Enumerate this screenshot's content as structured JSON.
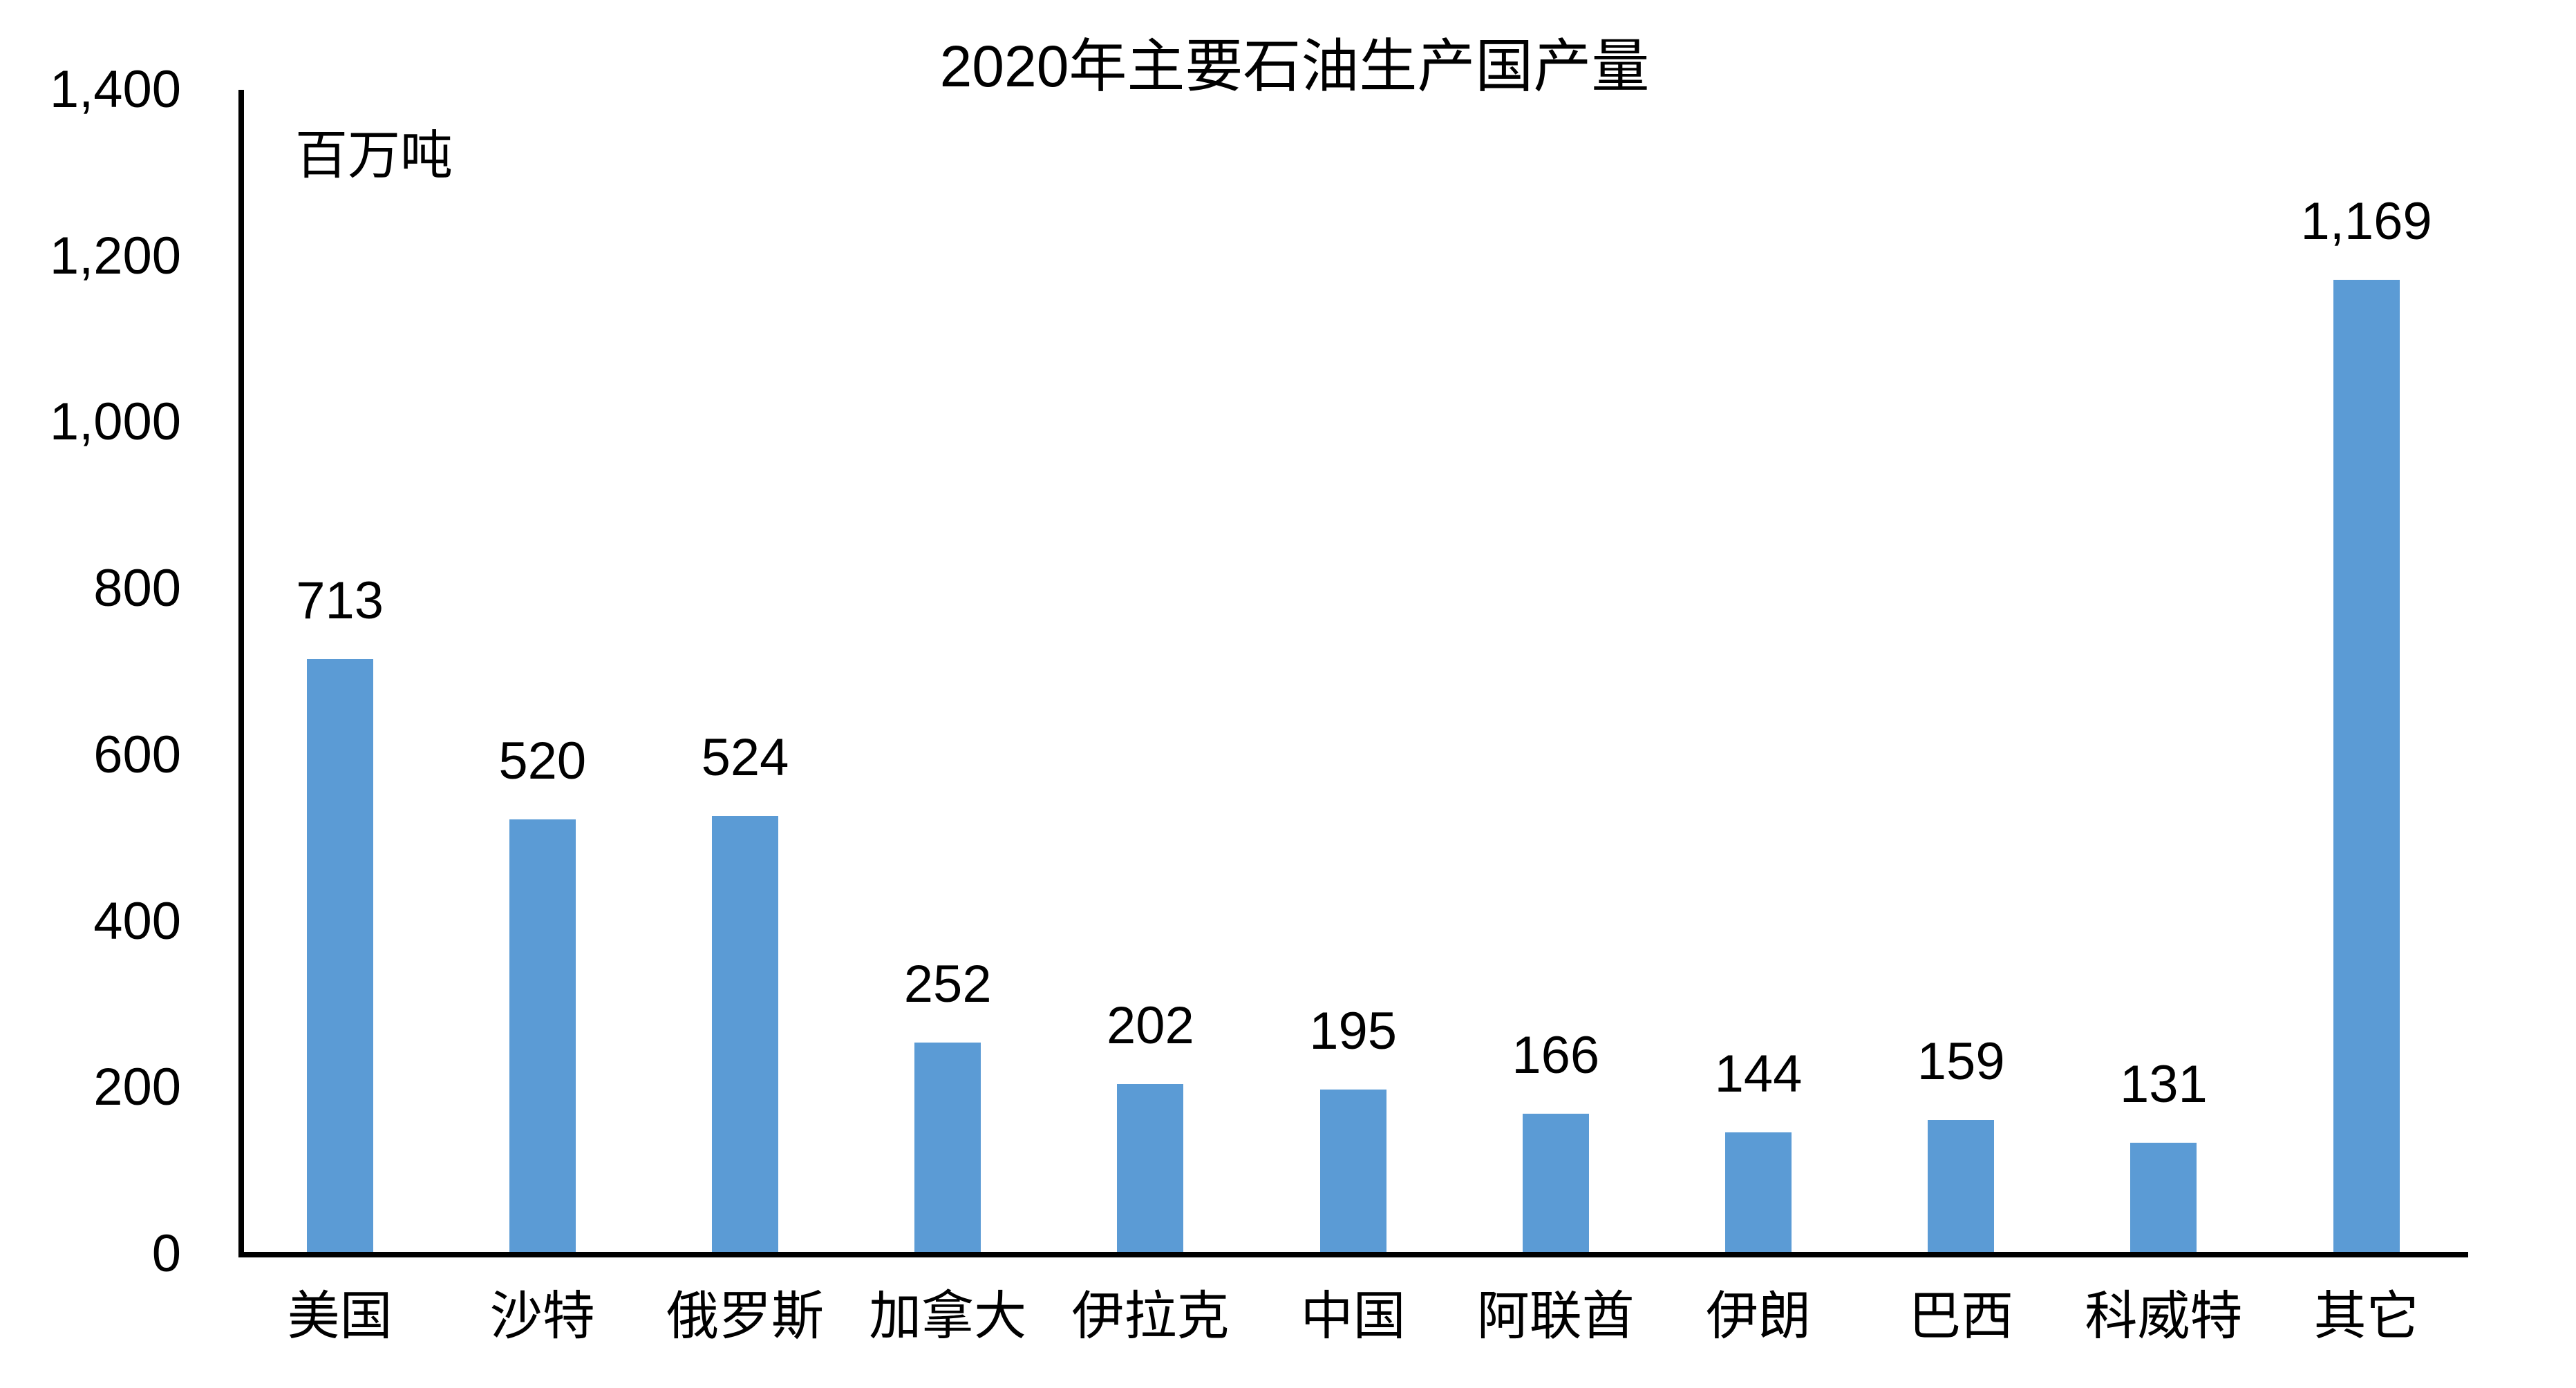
{
  "chart_data": {
    "type": "bar",
    "title": "2020年主要石油生产国产量",
    "unit_label": "百万吨",
    "categories": [
      "美国",
      "沙特",
      "俄罗斯",
      "加拿大",
      "伊拉克",
      "中国",
      "阿联酋",
      "伊朗",
      "巴西",
      "科威特",
      "其它"
    ],
    "values": [
      713,
      520,
      524,
      252,
      202,
      195,
      166,
      144,
      159,
      131,
      1169
    ],
    "value_labels": [
      "713",
      "520",
      "524",
      "252",
      "202",
      "195",
      "166",
      "144",
      "159",
      "131",
      "1,169"
    ],
    "yticks": [
      {
        "value": 0,
        "label": "0"
      },
      {
        "value": 200,
        "label": "200"
      },
      {
        "value": 400,
        "label": "400"
      },
      {
        "value": 600,
        "label": "600"
      },
      {
        "value": 800,
        "label": "800"
      },
      {
        "value": 1000,
        "label": "1,000"
      },
      {
        "value": 1200,
        "label": "1,200"
      },
      {
        "value": 1400,
        "label": "1,400"
      }
    ],
    "ylim": [
      0,
      1400
    ],
    "bar_color": "#5B9BD5",
    "text_color": "#000000",
    "grid": false,
    "legend": null
  }
}
